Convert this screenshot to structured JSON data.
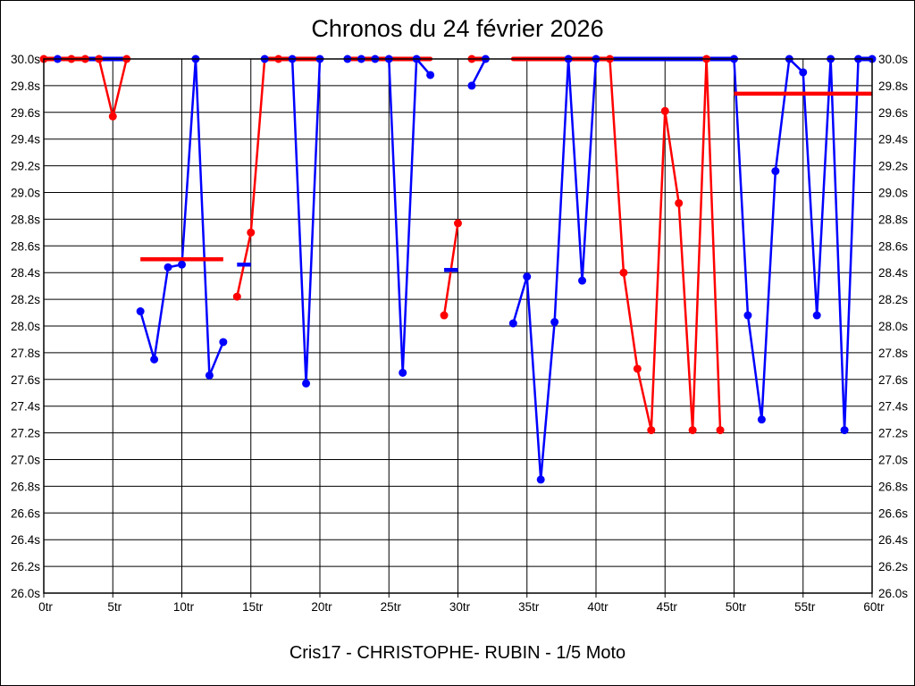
{
  "chart_data": {
    "type": "line",
    "title": "Chronos du 24 février 2026",
    "subtitle": "Cris17 - CHRISTOPHE- RUBIN - 1/5 Moto",
    "xlim": [
      0,
      60
    ],
    "ylim": [
      26.0,
      30.0
    ],
    "x_tick_step": 5,
    "y_tick_step": 0.2,
    "grid": true,
    "x_axis": {
      "labels": [
        "0tr",
        "5tr",
        "10tr",
        "15tr",
        "20tr",
        "25tr",
        "30tr",
        "35tr",
        "40tr",
        "45tr",
        "50tr",
        "55tr",
        "60tr"
      ]
    },
    "y_axis": {
      "labels_left": [
        "30.0s",
        "29.8s",
        "29.6s",
        "29.4s",
        "29.2s",
        "29.0s",
        "28.8s",
        "28.6s",
        "28.4s",
        "28.2s",
        "28.0s",
        "27.8s",
        "27.6s",
        "27.4s",
        "27.2s",
        "27.0s",
        "26.8s",
        "26.6s",
        "26.4s",
        "26.2s",
        "26.0s"
      ],
      "labels_right": [
        "30.0s",
        "29.8s",
        "29.6s",
        "29.4s",
        "29.2s",
        "29.0s",
        "28.8s",
        "28.6s",
        "28.4s",
        "28.2s",
        "28.0s",
        "27.8s",
        "27.6s",
        "27.4s",
        "27.2s",
        "27.0s",
        "26.8s",
        "26.6s",
        "26.4s",
        "26.2s",
        "26.0s"
      ]
    },
    "series": [
      {
        "name": "chrono-blue",
        "color": "#0000ff",
        "segments": [
          [
            [
              3,
              30.0
            ],
            [
              6,
              30.0
            ]
          ],
          [
            [
              7,
              28.11
            ],
            [
              8,
              27.75
            ],
            [
              9,
              28.44
            ],
            [
              10,
              28.46
            ],
            [
              11,
              30.0
            ],
            [
              12,
              27.63
            ],
            [
              13,
              27.88
            ]
          ],
          [
            [
              16,
              30.0
            ],
            [
              17,
              30.0
            ],
            [
              18,
              30.0
            ],
            [
              19,
              27.57
            ],
            [
              20,
              30.0
            ]
          ],
          [
            [
              22,
              30.0
            ],
            [
              23,
              30.0
            ],
            [
              24,
              30.0
            ],
            [
              25,
              30.0
            ],
            [
              26,
              27.65
            ],
            [
              27,
              30.0
            ],
            [
              28,
              29.88
            ]
          ],
          [
            [
              31,
              29.8
            ],
            [
              32,
              30.0
            ]
          ],
          [
            [
              34,
              28.02
            ],
            [
              35,
              28.37
            ],
            [
              36,
              26.85
            ],
            [
              37,
              28.03
            ],
            [
              38,
              30.0
            ],
            [
              39,
              28.34
            ],
            [
              40,
              30.0
            ],
            [
              50,
              30.0
            ],
            [
              51,
              28.08
            ],
            [
              52,
              27.3
            ],
            [
              53,
              29.16
            ],
            [
              54,
              30.0
            ],
            [
              55,
              29.9
            ],
            [
              56,
              28.08
            ],
            [
              57,
              30.0
            ],
            [
              58,
              27.22
            ],
            [
              59,
              30.0
            ],
            [
              60,
              30.0
            ]
          ]
        ],
        "dots": [
          [
            1,
            30.0
          ],
          [
            7,
            28.11
          ],
          [
            8,
            27.75
          ],
          [
            9,
            28.44
          ],
          [
            10,
            28.46
          ],
          [
            11,
            30.0
          ],
          [
            12,
            27.63
          ],
          [
            13,
            27.88
          ],
          [
            16,
            30.0
          ],
          [
            18,
            30.0
          ],
          [
            19,
            27.57
          ],
          [
            20,
            30.0
          ],
          [
            22,
            30.0
          ],
          [
            23,
            30.0
          ],
          [
            24,
            30.0
          ],
          [
            25,
            30.0
          ],
          [
            26,
            27.65
          ],
          [
            27,
            30.0
          ],
          [
            28,
            29.88
          ],
          [
            31,
            29.8
          ],
          [
            32,
            30.0
          ],
          [
            34,
            28.02
          ],
          [
            35,
            28.37
          ],
          [
            36,
            26.85
          ],
          [
            37,
            28.03
          ],
          [
            38,
            30.0
          ],
          [
            39,
            28.34
          ],
          [
            40,
            30.0
          ],
          [
            50,
            30.0
          ],
          [
            51,
            28.08
          ],
          [
            52,
            27.3
          ],
          [
            53,
            29.16
          ],
          [
            54,
            30.0
          ],
          [
            55,
            29.9
          ],
          [
            56,
            28.08
          ],
          [
            57,
            30.0
          ],
          [
            58,
            27.22
          ],
          [
            59,
            30.0
          ],
          [
            60,
            30.0
          ]
        ]
      },
      {
        "name": "chrono-red",
        "color": "#ff0000",
        "segments": [
          [
            [
              0,
              30.0
            ],
            [
              3,
              30.0
            ]
          ],
          [
            [
              4,
              30.0
            ],
            [
              5,
              29.57
            ],
            [
              6,
              30.0
            ]
          ],
          [
            [
              14,
              28.22
            ],
            [
              15,
              28.7
            ],
            [
              16,
              30.0
            ],
            [
              20,
              30.0
            ]
          ],
          [
            [
              22,
              30.0
            ],
            [
              28,
              30.0
            ]
          ],
          [
            [
              29,
              28.08
            ],
            [
              30,
              28.77
            ]
          ],
          [
            [
              31,
              30.0
            ],
            [
              32,
              30.0
            ]
          ],
          [
            [
              34,
              30.0
            ],
            [
              41,
              30.0
            ],
            [
              42,
              28.4
            ],
            [
              43,
              27.68
            ],
            [
              44,
              27.22
            ],
            [
              45,
              29.61
            ],
            [
              46,
              28.92
            ],
            [
              47,
              27.22
            ],
            [
              48,
              30.0
            ],
            [
              49,
              27.22
            ]
          ]
        ],
        "dots": [
          [
            0,
            30.0
          ],
          [
            2,
            30.0
          ],
          [
            3,
            30.0
          ],
          [
            4,
            30.0
          ],
          [
            5,
            29.57
          ],
          [
            6,
            30.0
          ],
          [
            14,
            28.22
          ],
          [
            15,
            28.7
          ],
          [
            17,
            30.0
          ],
          [
            29,
            28.08
          ],
          [
            30,
            28.77
          ],
          [
            31,
            30.0
          ],
          [
            41,
            30.0
          ],
          [
            42,
            28.4
          ],
          [
            43,
            27.68
          ],
          [
            44,
            27.22
          ],
          [
            45,
            29.61
          ],
          [
            46,
            28.92
          ],
          [
            47,
            27.22
          ],
          [
            48,
            30.0
          ],
          [
            49,
            27.22
          ]
        ]
      }
    ],
    "avg_bars": [
      {
        "color": "#ff0000",
        "y": 28.5,
        "x1": 7,
        "x2": 13
      },
      {
        "color": "#0000ff",
        "y": 28.46,
        "x1": 14,
        "x2": 15
      },
      {
        "color": "#0000ff",
        "y": 28.42,
        "x1": 29,
        "x2": 30
      },
      {
        "color": "#ff0000",
        "y": 29.74,
        "x1": 50,
        "x2": 60
      }
    ]
  }
}
